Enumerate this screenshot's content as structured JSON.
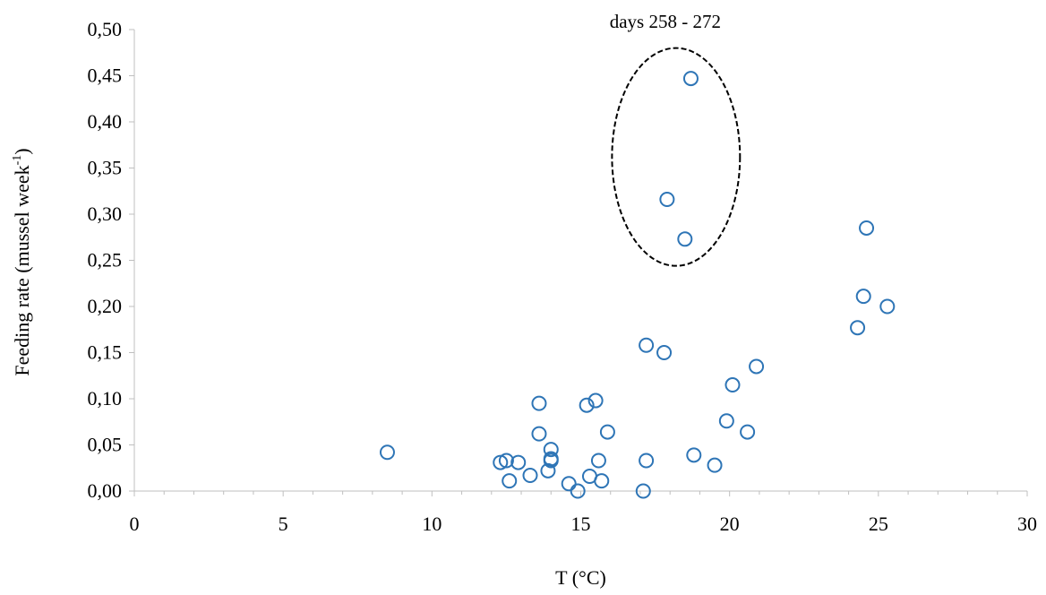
{
  "chart_data": {
    "type": "scatter",
    "xlabel": "T (°C)",
    "ylabel_main": "Feeding rate (mussel week",
    "ylabel_sup": "-1",
    "ylabel_tail": ")",
    "xlim": [
      0,
      30
    ],
    "ylim": [
      0,
      0.5
    ],
    "x_ticks": [
      0,
      5,
      10,
      15,
      20,
      25,
      30
    ],
    "x_tick_labels": [
      "0",
      "5",
      "10",
      "15",
      "20",
      "25",
      "30"
    ],
    "y_ticks": [
      0,
      0.05,
      0.1,
      0.15,
      0.2,
      0.25,
      0.3,
      0.35,
      0.4,
      0.45,
      0.5
    ],
    "y_tick_labels": [
      "0,00",
      "0,05",
      "0,10",
      "0,15",
      "0,20",
      "0,25",
      "0,30",
      "0,35",
      "0,40",
      "0,45",
      "0,50"
    ],
    "grid": false,
    "marker_color": "#2E75B6",
    "annotation": {
      "text": "days 258 - 272",
      "ellipse_center": [
        18.2,
        0.362
      ],
      "ellipse_radius": [
        2.15,
        0.118
      ]
    },
    "points": [
      {
        "x": 8.5,
        "y": 0.042
      },
      {
        "x": 12.3,
        "y": 0.031
      },
      {
        "x": 12.5,
        "y": 0.033
      },
      {
        "x": 12.6,
        "y": 0.011
      },
      {
        "x": 12.9,
        "y": 0.031
      },
      {
        "x": 13.3,
        "y": 0.017
      },
      {
        "x": 13.6,
        "y": 0.095
      },
      {
        "x": 13.6,
        "y": 0.062
      },
      {
        "x": 13.9,
        "y": 0.022
      },
      {
        "x": 14.0,
        "y": 0.045
      },
      {
        "x": 14.0,
        "y": 0.035
      },
      {
        "x": 14.0,
        "y": 0.033
      },
      {
        "x": 14.6,
        "y": 0.008
      },
      {
        "x": 14.9,
        "y": 0.0
      },
      {
        "x": 15.2,
        "y": 0.093
      },
      {
        "x": 15.3,
        "y": 0.016
      },
      {
        "x": 15.5,
        "y": 0.098
      },
      {
        "x": 15.6,
        "y": 0.033
      },
      {
        "x": 15.7,
        "y": 0.011
      },
      {
        "x": 15.9,
        "y": 0.064
      },
      {
        "x": 17.1,
        "y": 0.0
      },
      {
        "x": 17.2,
        "y": 0.158
      },
      {
        "x": 17.2,
        "y": 0.033
      },
      {
        "x": 17.8,
        "y": 0.15
      },
      {
        "x": 17.9,
        "y": 0.316
      },
      {
        "x": 18.5,
        "y": 0.273
      },
      {
        "x": 18.7,
        "y": 0.447
      },
      {
        "x": 18.8,
        "y": 0.039
      },
      {
        "x": 19.5,
        "y": 0.028
      },
      {
        "x": 19.9,
        "y": 0.076
      },
      {
        "x": 20.1,
        "y": 0.115
      },
      {
        "x": 20.6,
        "y": 0.064
      },
      {
        "x": 20.9,
        "y": 0.135
      },
      {
        "x": 24.3,
        "y": 0.177
      },
      {
        "x": 24.5,
        "y": 0.211
      },
      {
        "x": 24.6,
        "y": 0.285
      },
      {
        "x": 25.3,
        "y": 0.2
      }
    ]
  }
}
